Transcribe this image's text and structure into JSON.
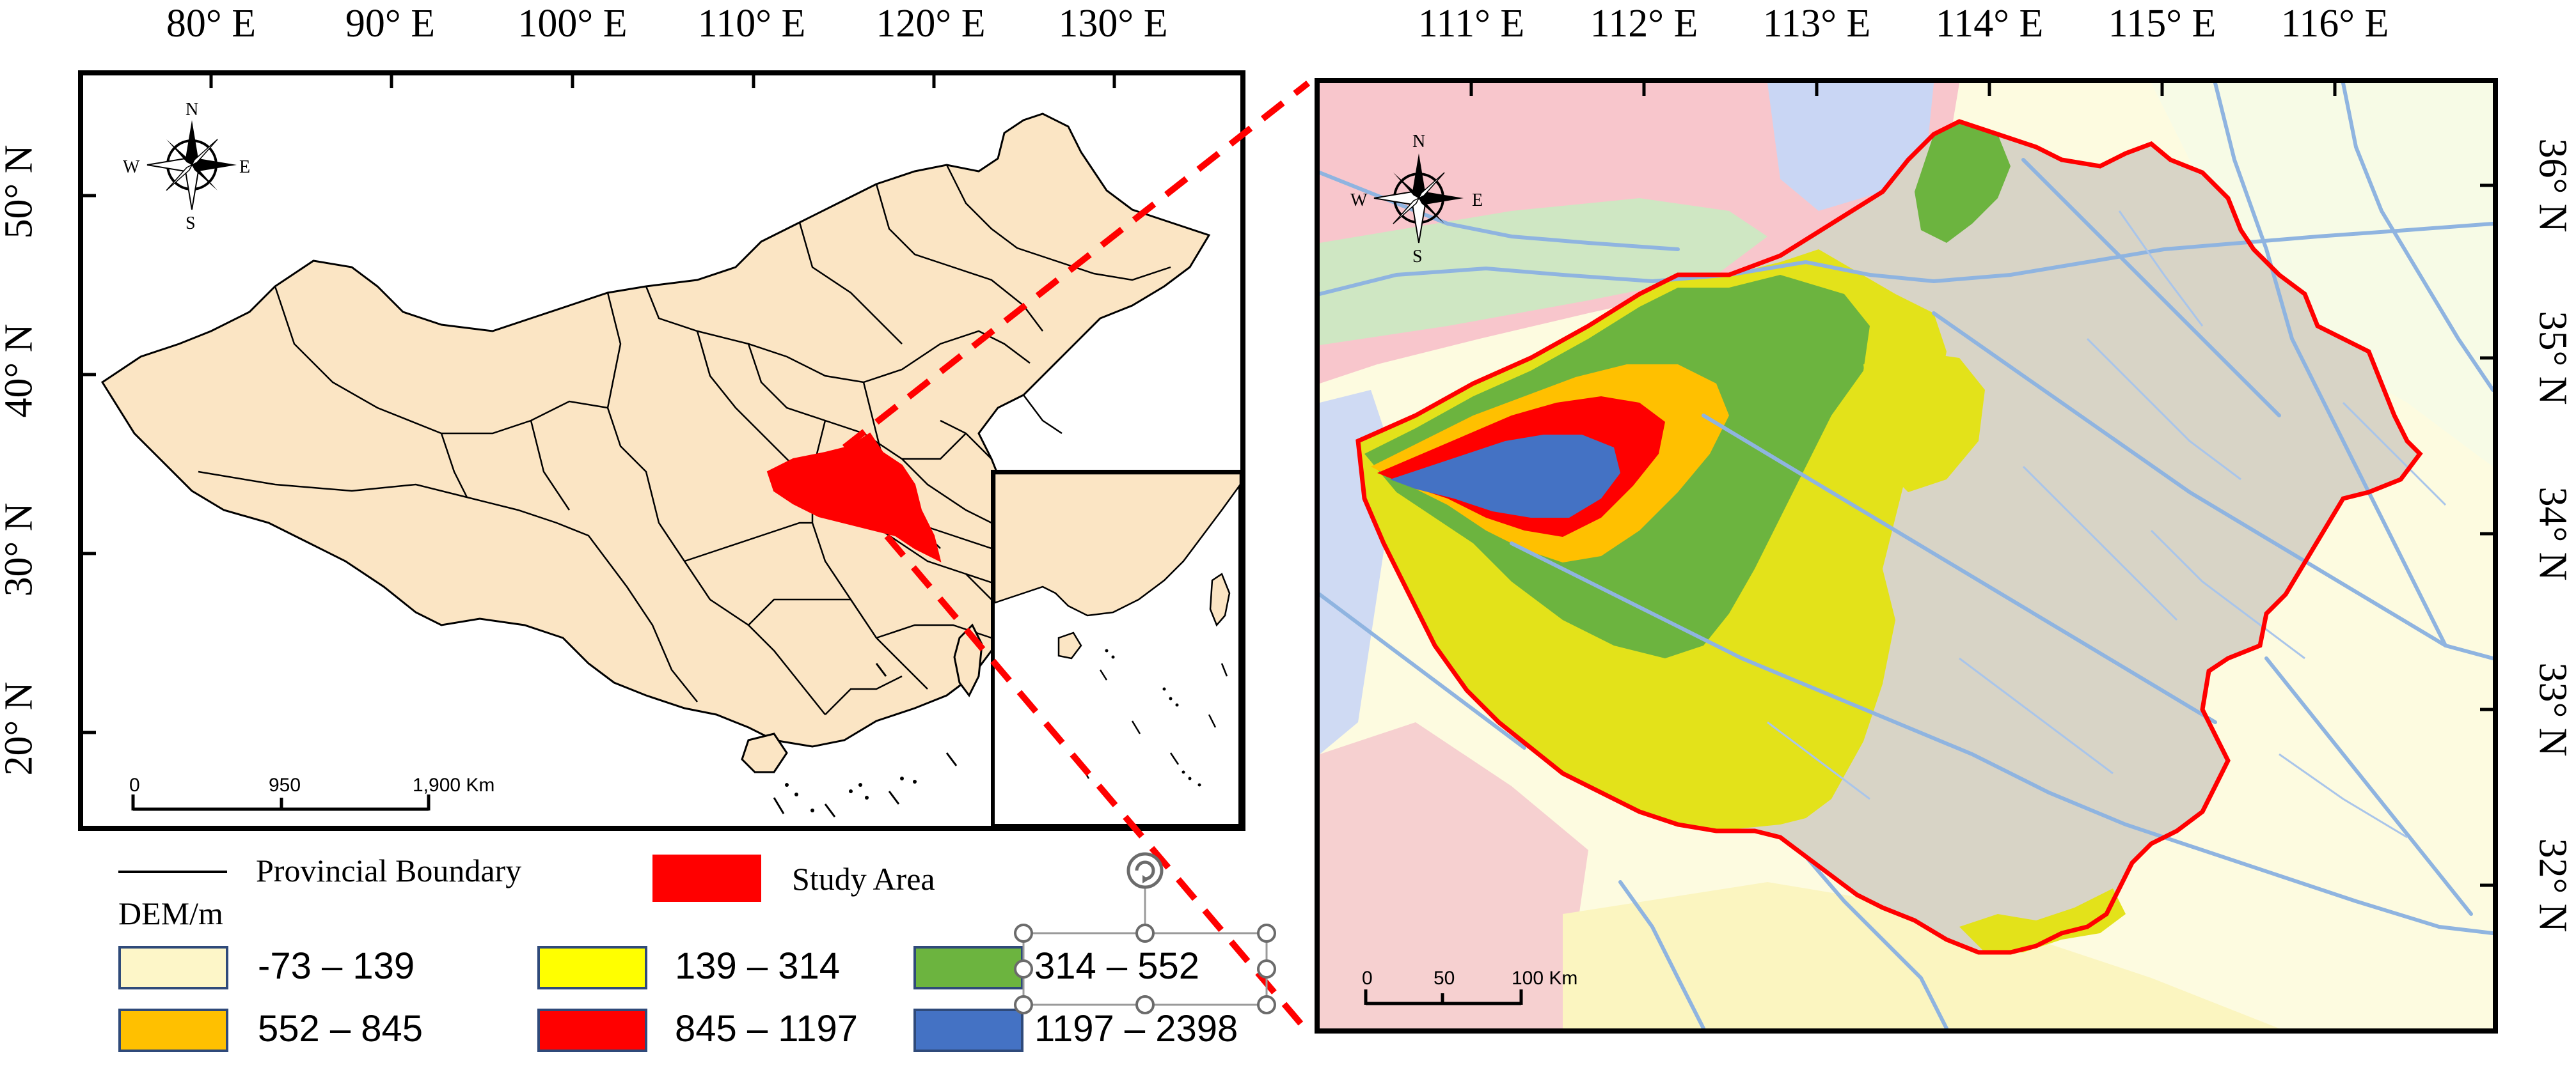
{
  "overview_map": {
    "lon_ticks": [
      "80° E",
      "90° E",
      "100° E",
      "110° E",
      "120° E",
      "130° E"
    ],
    "lat_ticks": [
      "50° N",
      "40° N",
      "30° N",
      "20° N"
    ],
    "scale_labels": [
      "0",
      "950",
      "1,900 Km"
    ],
    "north_arrow": {
      "n": "N",
      "s": "S",
      "w": "W",
      "e": "E"
    }
  },
  "detail_map": {
    "lon_ticks": [
      "111° E",
      "112° E",
      "113° E",
      "114° E",
      "115° E",
      "116° E"
    ],
    "lat_ticks": [
      "36° N",
      "35° N",
      "34° N",
      "33° N",
      "32° N"
    ],
    "scale_labels": [
      "0",
      "50",
      "100 Km"
    ],
    "north_arrow": {
      "n": "N",
      "s": "S",
      "w": "W",
      "e": "E"
    }
  },
  "legend": {
    "boundary_label": "Provincial Boundary",
    "study_area_label": "Study Area",
    "dem_title": "DEM/m",
    "classes": [
      {
        "label": "-73 – 139",
        "color": "#fdf6c8"
      },
      {
        "label": "139 – 314",
        "color": "#ffff00"
      },
      {
        "label": "314 – 552",
        "color": "#6cb43f"
      },
      {
        "label": "552 – 845",
        "color": "#ffc000"
      },
      {
        "label": "845 – 1197",
        "color": "#ff0000"
      },
      {
        "label": "1197 – 2398",
        "color": "#4472c4"
      }
    ]
  },
  "colors": {
    "land": "#fbe5c4",
    "study_area": "#ff0000",
    "leader_line": "#ff0000",
    "river": "#8fb4e0",
    "province_fill": "#d6d2c4"
  }
}
